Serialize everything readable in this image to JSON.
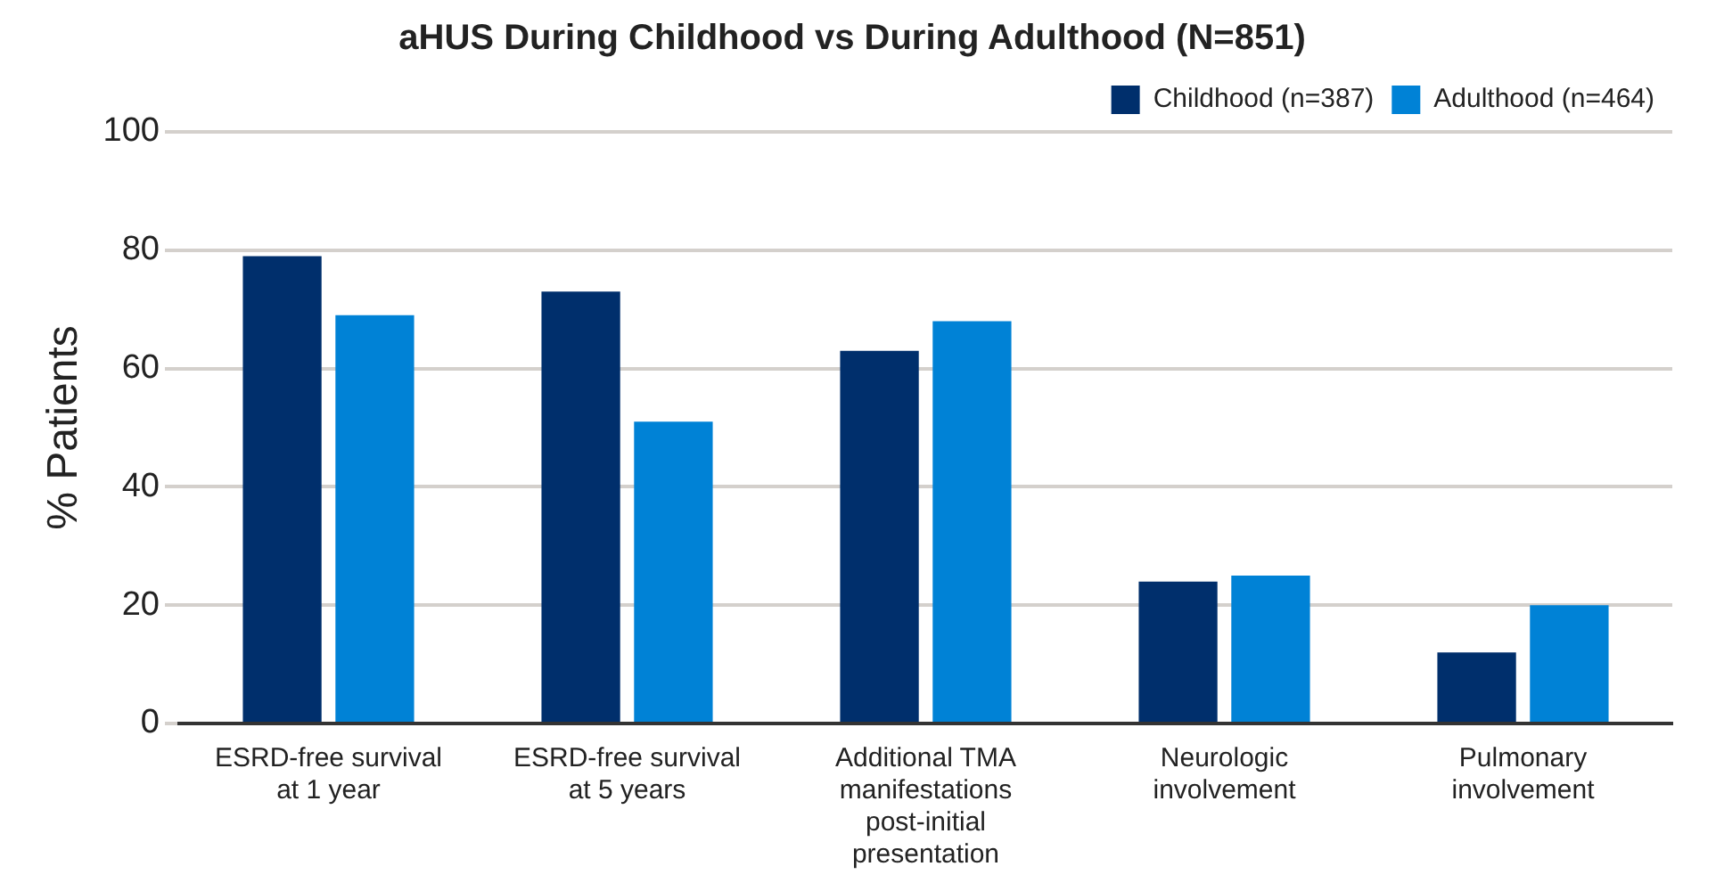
{
  "chart_data": {
    "type": "bar",
    "title": "aHUS During Childhood vs During Adulthood (N=851)",
    "ylabel": "% Patients",
    "categories": [
      "ESRD-free survival at 1 year",
      "ESRD-free survival at 5 years",
      "Additional TMA manifestations post-initial presentation",
      "Neurologic involvement",
      "Pulmonary involvement"
    ],
    "series": [
      {
        "name": "Childhood (n=387)",
        "color": "#002f6c",
        "values": [
          79,
          73,
          63,
          24,
          12
        ]
      },
      {
        "name": "Adulthood (n=464)",
        "color": "#0082d6",
        "values": [
          69,
          51,
          68,
          25,
          20
        ]
      }
    ],
    "ylim": [
      0,
      100
    ],
    "yticks": [
      0,
      20,
      40,
      60,
      80,
      100
    ],
    "grid": "y",
    "legend": "top right"
  }
}
